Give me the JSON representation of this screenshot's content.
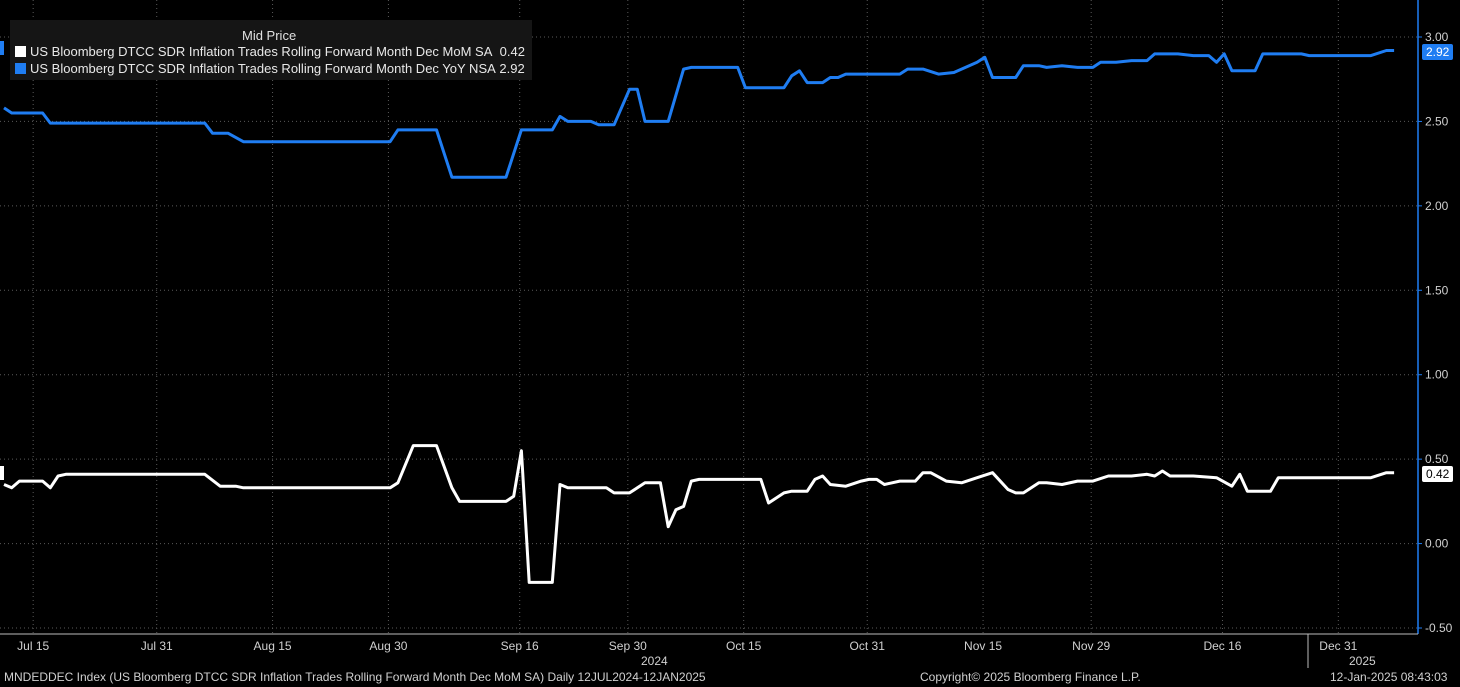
{
  "chart_data": {
    "type": "line",
    "title": "Mid Price",
    "x_range": [
      "2024-07-12",
      "2025-01-12"
    ],
    "ylim": [
      -0.5,
      3.0
    ],
    "y_ticks": [
      "3.00",
      "2.50",
      "2.00",
      "1.50",
      "1.00",
      "0.50",
      "0.00",
      "-0.50"
    ],
    "x_ticks": [
      "Jul 15",
      "Jul 31",
      "Aug 15",
      "Aug 30",
      "Sep 16",
      "Sep 30",
      "Oct 15",
      "Oct 31",
      "Nov 15",
      "Nov 29",
      "Dec 16",
      "Dec 31"
    ],
    "year_labels": [
      "2024",
      "2025"
    ],
    "grid": true,
    "legend_position": "top-left",
    "series": [
      {
        "name": "US Bloomberg DTCC SDR Inflation Trades Rolling Forward Month Dec MoM SA",
        "last": "0.42",
        "color": "#ffffff",
        "points": [
          [
            "2024-07-12",
            0.35
          ],
          [
            "2024-07-13",
            0.33
          ],
          [
            "2024-07-14",
            0.37
          ],
          [
            "2024-07-17",
            0.37
          ],
          [
            "2024-07-18",
            0.33
          ],
          [
            "2024-07-19",
            0.4
          ],
          [
            "2024-07-20",
            0.41
          ],
          [
            "2024-08-07",
            0.41
          ],
          [
            "2024-08-09",
            0.34
          ],
          [
            "2024-08-11",
            0.34
          ],
          [
            "2024-08-12",
            0.33
          ],
          [
            "2024-08-31",
            0.33
          ],
          [
            "2024-09-01",
            0.36
          ],
          [
            "2024-09-03",
            0.58
          ],
          [
            "2024-09-06",
            0.58
          ],
          [
            "2024-09-08",
            0.33
          ],
          [
            "2024-09-09",
            0.25
          ],
          [
            "2024-09-15",
            0.25
          ],
          [
            "2024-09-16",
            0.28
          ],
          [
            "2024-09-17",
            0.55
          ],
          [
            "2024-09-18",
            -0.23
          ],
          [
            "2024-09-21",
            -0.23
          ],
          [
            "2024-09-22",
            0.35
          ],
          [
            "2024-09-23",
            0.33
          ],
          [
            "2024-09-28",
            0.33
          ],
          [
            "2024-09-29",
            0.3
          ],
          [
            "2024-10-01",
            0.3
          ],
          [
            "2024-10-03",
            0.36
          ],
          [
            "2024-10-05",
            0.36
          ],
          [
            "2024-10-06",
            0.1
          ],
          [
            "2024-10-07",
            0.2
          ],
          [
            "2024-10-08",
            0.22
          ],
          [
            "2024-10-09",
            0.37
          ],
          [
            "2024-10-10",
            0.38
          ],
          [
            "2024-10-18",
            0.38
          ],
          [
            "2024-10-19",
            0.24
          ],
          [
            "2024-10-21",
            0.3
          ],
          [
            "2024-10-22",
            0.31
          ],
          [
            "2024-10-24",
            0.31
          ],
          [
            "2024-10-25",
            0.38
          ],
          [
            "2024-10-26",
            0.4
          ],
          [
            "2024-10-27",
            0.35
          ],
          [
            "2024-10-29",
            0.34
          ],
          [
            "2024-10-31",
            0.37
          ],
          [
            "2024-11-01",
            0.38
          ],
          [
            "2024-11-02",
            0.38
          ],
          [
            "2024-11-03",
            0.35
          ],
          [
            "2024-11-05",
            0.37
          ],
          [
            "2024-11-07",
            0.37
          ],
          [
            "2024-11-08",
            0.42
          ],
          [
            "2024-11-09",
            0.42
          ],
          [
            "2024-11-11",
            0.37
          ],
          [
            "2024-11-13",
            0.36
          ],
          [
            "2024-11-15",
            0.39
          ],
          [
            "2024-11-17",
            0.42
          ],
          [
            "2024-11-19",
            0.32
          ],
          [
            "2024-11-20",
            0.3
          ],
          [
            "2024-11-21",
            0.3
          ],
          [
            "2024-11-23",
            0.36
          ],
          [
            "2024-11-24",
            0.36
          ],
          [
            "2024-11-26",
            0.35
          ],
          [
            "2024-11-28",
            0.37
          ],
          [
            "2024-11-30",
            0.37
          ],
          [
            "2024-12-02",
            0.4
          ],
          [
            "2024-12-03",
            0.4
          ],
          [
            "2024-12-05",
            0.4
          ],
          [
            "2024-12-07",
            0.41
          ],
          [
            "2024-12-08",
            0.4
          ],
          [
            "2024-12-09",
            0.43
          ],
          [
            "2024-12-10",
            0.4
          ],
          [
            "2024-12-13",
            0.4
          ],
          [
            "2024-12-16",
            0.39
          ],
          [
            "2024-12-18",
            0.34
          ],
          [
            "2024-12-19",
            0.41
          ],
          [
            "2024-12-20",
            0.31
          ],
          [
            "2024-12-23",
            0.31
          ],
          [
            "2024-12-24",
            0.39
          ],
          [
            "2024-12-29",
            0.39
          ],
          [
            "2024-12-30",
            0.39
          ],
          [
            "2025-01-05",
            0.39
          ],
          [
            "2025-01-07",
            0.42
          ],
          [
            "2025-01-08",
            0.42
          ]
        ]
      },
      {
        "name": "US Bloomberg DTCC SDR Inflation Trades Rolling Forward Month Dec YoY NSA",
        "last": "2.92",
        "color": "#1f7df2",
        "points": [
          [
            "2024-07-12",
            2.58
          ],
          [
            "2024-07-13",
            2.55
          ],
          [
            "2024-07-17",
            2.55
          ],
          [
            "2024-07-18",
            2.49
          ],
          [
            "2024-08-07",
            2.49
          ],
          [
            "2024-08-08",
            2.43
          ],
          [
            "2024-08-10",
            2.43
          ],
          [
            "2024-08-12",
            2.38
          ],
          [
            "2024-08-31",
            2.38
          ],
          [
            "2024-09-01",
            2.45
          ],
          [
            "2024-09-06",
            2.45
          ],
          [
            "2024-09-08",
            2.17
          ],
          [
            "2024-09-15",
            2.17
          ],
          [
            "2024-09-17",
            2.45
          ],
          [
            "2024-09-21",
            2.45
          ],
          [
            "2024-09-22",
            2.53
          ],
          [
            "2024-09-23",
            2.5
          ],
          [
            "2024-09-26",
            2.5
          ],
          [
            "2024-09-27",
            2.48
          ],
          [
            "2024-09-29",
            2.48
          ],
          [
            "2024-10-01",
            2.69
          ],
          [
            "2024-10-02",
            2.69
          ],
          [
            "2024-10-03",
            2.5
          ],
          [
            "2024-10-06",
            2.5
          ],
          [
            "2024-10-08",
            2.81
          ],
          [
            "2024-10-09",
            2.82
          ],
          [
            "2024-10-15",
            2.82
          ],
          [
            "2024-10-16",
            2.7
          ],
          [
            "2024-10-21",
            2.7
          ],
          [
            "2024-10-22",
            2.77
          ],
          [
            "2024-10-23",
            2.8
          ],
          [
            "2024-10-24",
            2.73
          ],
          [
            "2024-10-26",
            2.73
          ],
          [
            "2024-10-27",
            2.76
          ],
          [
            "2024-10-28",
            2.76
          ],
          [
            "2024-10-29",
            2.78
          ],
          [
            "2024-11-05",
            2.78
          ],
          [
            "2024-11-06",
            2.81
          ],
          [
            "2024-11-08",
            2.81
          ],
          [
            "2024-11-10",
            2.78
          ],
          [
            "2024-11-12",
            2.79
          ],
          [
            "2024-11-15",
            2.85
          ],
          [
            "2024-11-16",
            2.88
          ],
          [
            "2024-11-17",
            2.76
          ],
          [
            "2024-11-20",
            2.76
          ],
          [
            "2024-11-21",
            2.83
          ],
          [
            "2024-11-23",
            2.83
          ],
          [
            "2024-11-24",
            2.82
          ],
          [
            "2024-11-26",
            2.83
          ],
          [
            "2024-11-28",
            2.82
          ],
          [
            "2024-11-30",
            2.82
          ],
          [
            "2024-12-01",
            2.85
          ],
          [
            "2024-12-03",
            2.85
          ],
          [
            "2024-12-05",
            2.86
          ],
          [
            "2024-12-07",
            2.86
          ],
          [
            "2024-12-08",
            2.9
          ],
          [
            "2024-12-11",
            2.9
          ],
          [
            "2024-12-13",
            2.89
          ],
          [
            "2024-12-15",
            2.89
          ],
          [
            "2024-12-16",
            2.85
          ],
          [
            "2024-12-17",
            2.9
          ],
          [
            "2024-12-18",
            2.8
          ],
          [
            "2024-12-21",
            2.8
          ],
          [
            "2024-12-22",
            2.9
          ],
          [
            "2024-12-25",
            2.9
          ],
          [
            "2024-12-27",
            2.9
          ],
          [
            "2024-12-28",
            2.89
          ],
          [
            "2025-01-05",
            2.89
          ],
          [
            "2025-01-07",
            2.92
          ],
          [
            "2025-01-08",
            2.92
          ]
        ]
      }
    ]
  },
  "footer": {
    "left": "MNDEDDEC Index (US Bloomberg DTCC SDR Inflation Trades Rolling Forward Month Dec MoM SA)  Daily 12JUL2024-12JAN2025",
    "center": "Copyright© 2025 Bloomberg Finance L.P.",
    "right": "12-Jan-2025 08:43:03"
  },
  "colors": {
    "background": "#000000",
    "grid": "#5a5a5a",
    "axis": "#1f7df2"
  }
}
